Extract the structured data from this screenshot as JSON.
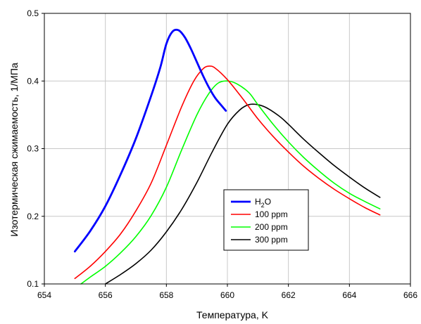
{
  "chart_data": {
    "type": "line",
    "title": "",
    "xlabel": "Температура, K",
    "ylabel": "Изотермическая сжимаемость, 1/МПа",
    "xlim": [
      654,
      666
    ],
    "ylim": [
      0.1,
      0.5
    ],
    "xticks": [
      "654",
      "656",
      "658",
      "660",
      "662",
      "664",
      "666"
    ],
    "yticks": [
      "0.1",
      "0.2",
      "0.3",
      "0.4",
      "0.5"
    ],
    "grid": true,
    "legend": {
      "position": "center-right",
      "entries": [
        {
          "main": "H",
          "sub": "2",
          "tail": "O"
        },
        {
          "main": "100 ppm"
        },
        {
          "main": "200 ppm"
        },
        {
          "main": "300 ppm"
        }
      ]
    },
    "series": [
      {
        "name": "H2O",
        "color": "#0000ff",
        "x": [
          655.0,
          655.5,
          656.0,
          656.5,
          657.0,
          657.5,
          657.8,
          658.0,
          658.2,
          658.4,
          658.6,
          658.8,
          659.0,
          659.2,
          659.4,
          659.6,
          659.8,
          659.95
        ],
        "y": [
          0.148,
          0.178,
          0.215,
          0.262,
          0.315,
          0.378,
          0.42,
          0.455,
          0.473,
          0.475,
          0.465,
          0.448,
          0.428,
          0.408,
          0.39,
          0.375,
          0.364,
          0.356
        ]
      },
      {
        "name": "100 ppm",
        "color": "#ff0000",
        "x": [
          655.0,
          655.5,
          656.0,
          656.5,
          657.0,
          657.5,
          658.0,
          658.5,
          658.9,
          659.2,
          659.4,
          659.6,
          660.0,
          660.5,
          661.0,
          661.5,
          662.0,
          662.5,
          663.0,
          663.5,
          664.0,
          664.5,
          665.0
        ],
        "y": [
          0.108,
          0.126,
          0.148,
          0.174,
          0.208,
          0.249,
          0.305,
          0.362,
          0.4,
          0.418,
          0.422,
          0.419,
          0.402,
          0.374,
          0.344,
          0.318,
          0.295,
          0.274,
          0.256,
          0.24,
          0.226,
          0.213,
          0.202
        ]
      },
      {
        "name": "200 ppm",
        "color": "#00ff00",
        "x": [
          655.2,
          655.5,
          656.0,
          656.5,
          657.0,
          657.5,
          658.0,
          658.5,
          659.0,
          659.4,
          659.7,
          660.0,
          660.3,
          660.7,
          661.0,
          661.5,
          662.0,
          662.5,
          663.0,
          663.5,
          664.0,
          664.5,
          665.0
        ],
        "y": [
          0.1,
          0.11,
          0.126,
          0.146,
          0.17,
          0.201,
          0.243,
          0.298,
          0.35,
          0.382,
          0.397,
          0.4,
          0.396,
          0.383,
          0.365,
          0.336,
          0.31,
          0.287,
          0.267,
          0.249,
          0.234,
          0.222,
          0.211
        ]
      },
      {
        "name": "300 ppm",
        "color": "#000000",
        "x": [
          656.0,
          656.5,
          657.0,
          657.5,
          658.0,
          658.5,
          659.0,
          659.5,
          660.0,
          660.4,
          660.7,
          661.0,
          661.3,
          661.7,
          662.0,
          662.5,
          663.0,
          663.5,
          664.0,
          664.5,
          665.0
        ],
        "y": [
          0.1,
          0.114,
          0.13,
          0.15,
          0.177,
          0.21,
          0.25,
          0.295,
          0.336,
          0.357,
          0.365,
          0.365,
          0.36,
          0.348,
          0.336,
          0.314,
          0.294,
          0.275,
          0.258,
          0.242,
          0.228
        ]
      }
    ]
  }
}
